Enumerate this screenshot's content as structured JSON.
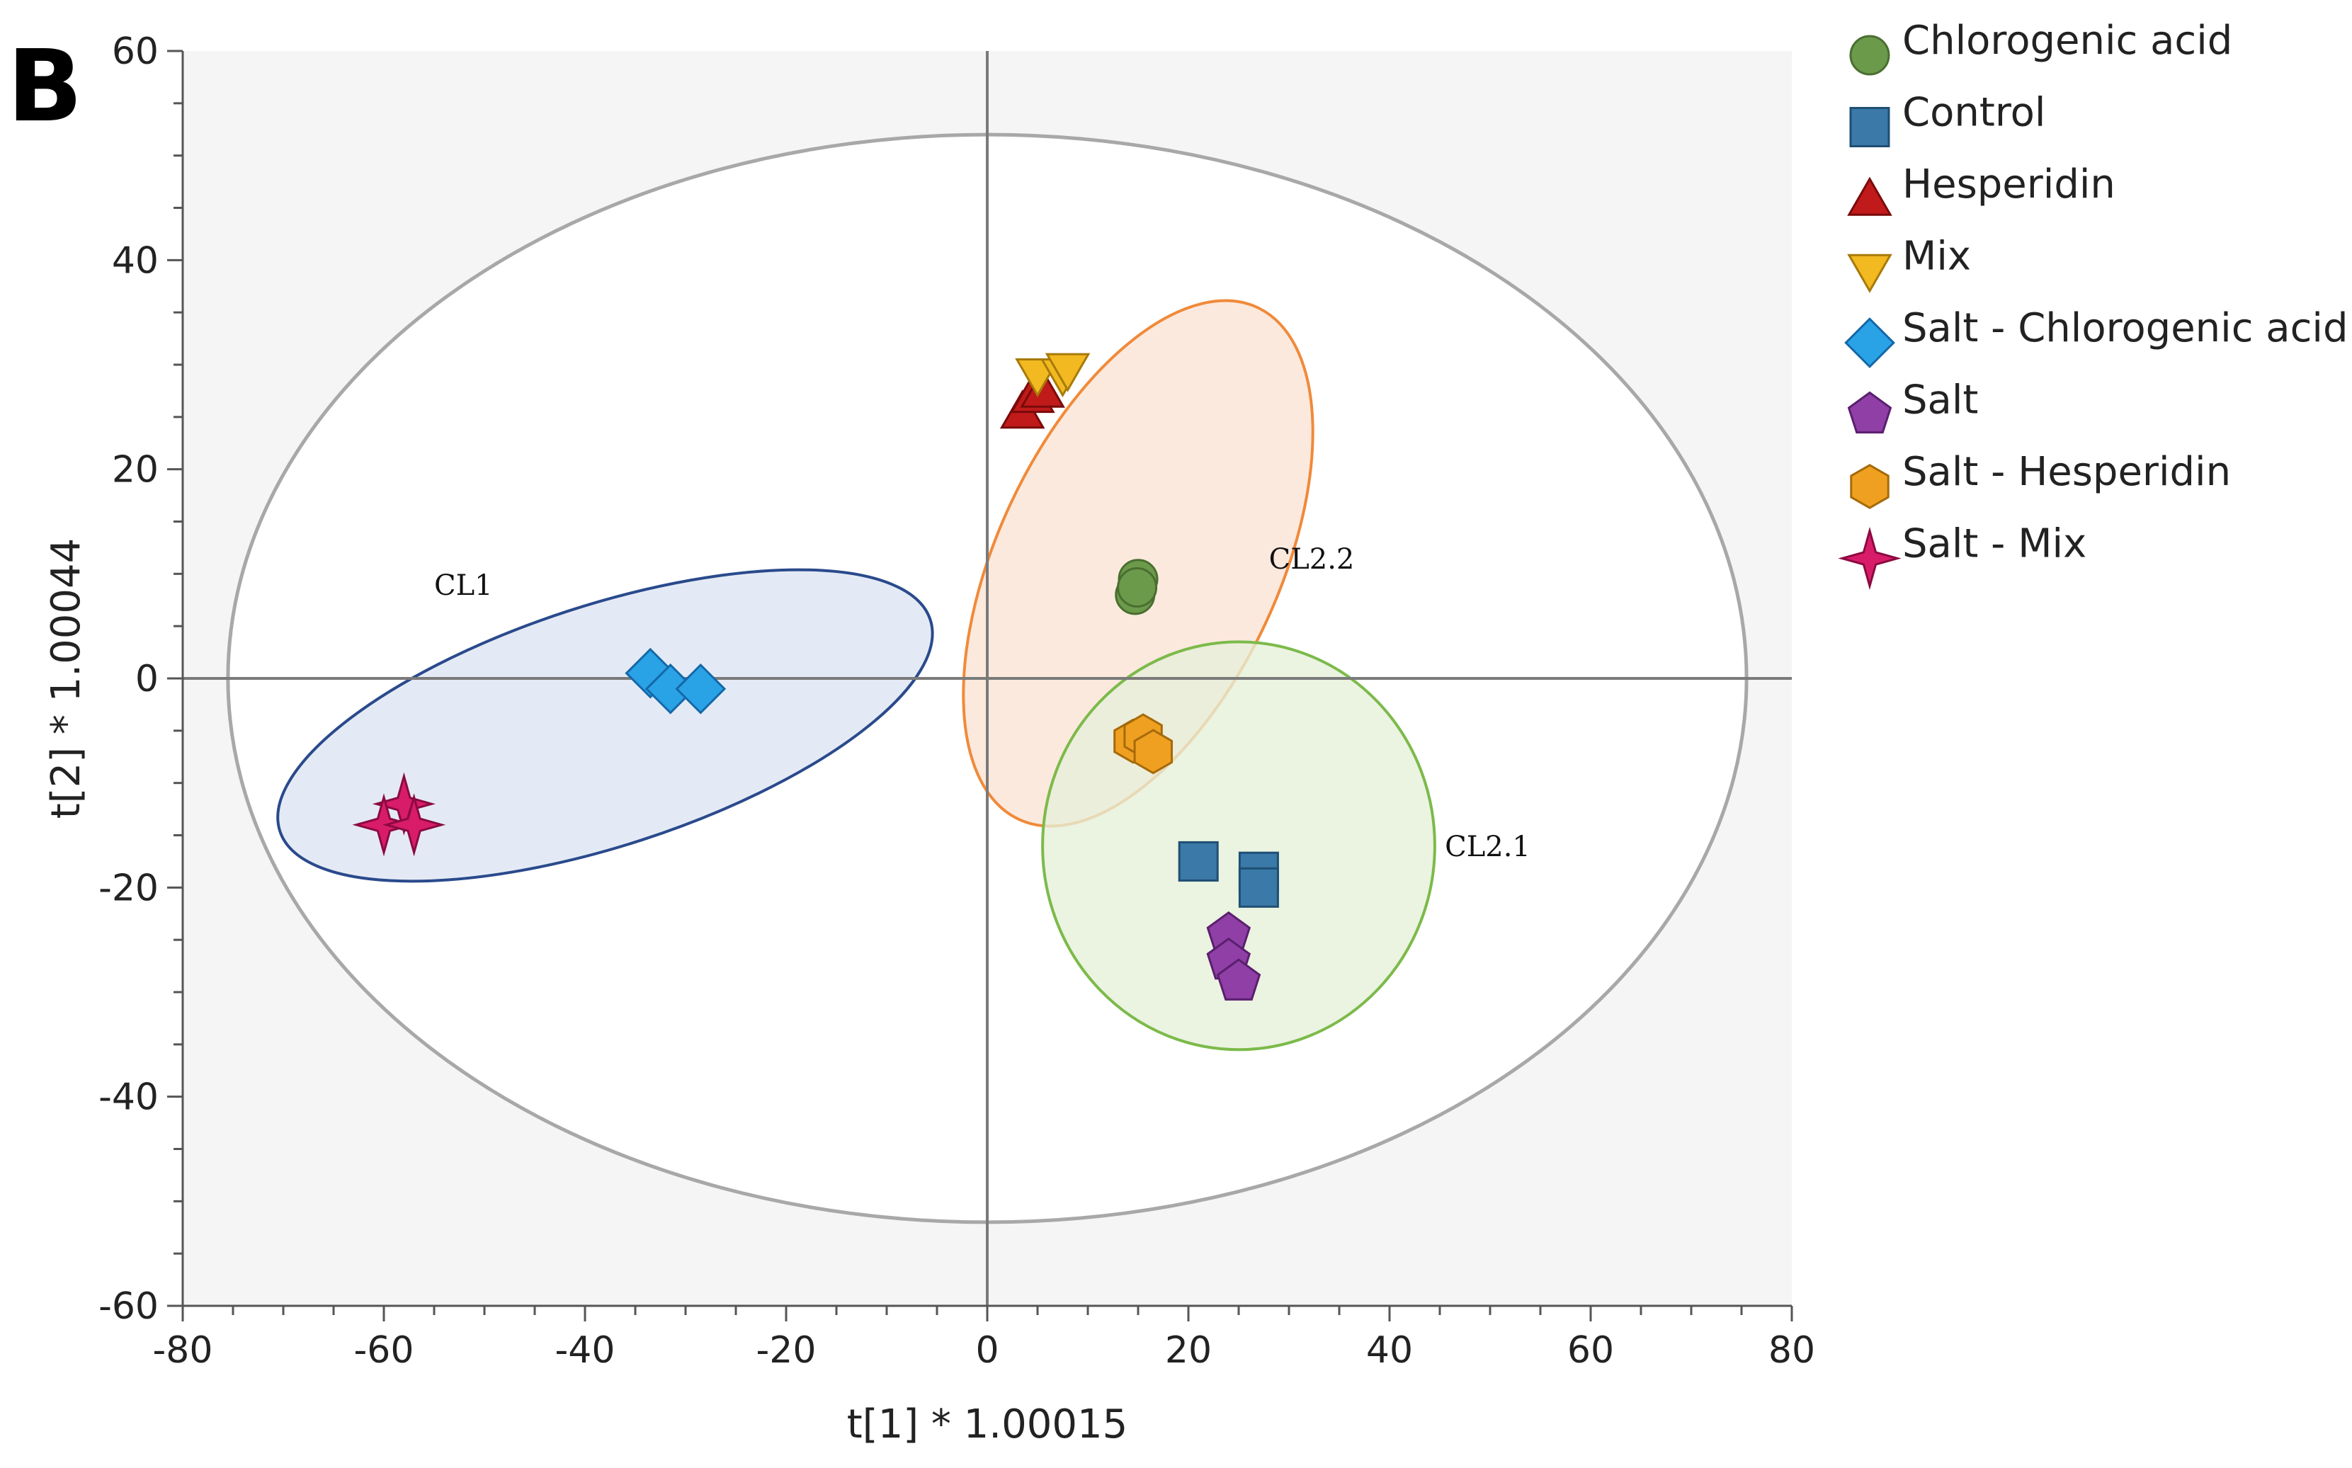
{
  "panel_label": "B",
  "chart_data": {
    "type": "scatter",
    "title": "",
    "xlabel": "t[1] * 1.00015",
    "ylabel": "t[2] * 1.00044",
    "xlim": [
      -80,
      80
    ],
    "ylim": [
      -60,
      60
    ],
    "xticks": [
      "-80",
      "-60",
      "-40",
      "-20",
      "0",
      "20",
      "40",
      "60",
      "80"
    ],
    "yticks": [
      "-60",
      "-40",
      "-20",
      "0",
      "20",
      "40",
      "60"
    ],
    "grid": false,
    "legend_position": "right",
    "hotelling_ellipse": {
      "cx": 0,
      "cy": 0,
      "rx": 75.5,
      "ry": 52
    },
    "clusters": [
      {
        "name": "CL1",
        "cx": -38,
        "cy": -4.5,
        "rx": 34,
        "ry": 11.5,
        "angle_deg": 18,
        "fill": "#dce4f2",
        "stroke": "#2a4a8c",
        "label_x": -55,
        "label_y": 8
      },
      {
        "name": "CL2.2",
        "cx": 15,
        "cy": 11,
        "rx": 14,
        "ry": 27,
        "angle_deg": -25,
        "fill": "#fbe3d3",
        "stroke": "#f08a3a",
        "label_x": 28,
        "label_y": 10.5
      },
      {
        "name": "CL2.1",
        "cx": 25,
        "cy": -16,
        "rx": 19.5,
        "ry": 19.5,
        "angle_deg": 0,
        "fill": "#e6f0d8",
        "stroke": "#7cba4a",
        "label_x": 45.5,
        "label_y": -17
      }
    ],
    "series": [
      {
        "name": "Chlorogenic acid",
        "marker": "circle",
        "color": "#6b9a4a",
        "stroke": "#4a6e30",
        "points": [
          [
            15,
            9.5
          ],
          [
            14.7,
            8
          ],
          [
            14.9,
            8.7
          ]
        ]
      },
      {
        "name": "Control",
        "marker": "square",
        "color": "#3a79a8",
        "stroke": "#1f4f73",
        "points": [
          [
            21,
            -17.5
          ],
          [
            27,
            -18.5
          ],
          [
            27,
            -20
          ]
        ]
      },
      {
        "name": "Hesperidin",
        "marker": "triangle-up",
        "color": "#c01a1a",
        "stroke": "#7a0a0a",
        "points": [
          [
            3.5,
            25.5
          ],
          [
            4.5,
            27
          ],
          [
            5.5,
            27.5
          ]
        ]
      },
      {
        "name": "Mix",
        "marker": "triangle-down",
        "color": "#f2b920",
        "stroke": "#a77a0a",
        "points": [
          [
            5,
            29
          ],
          [
            7.5,
            29
          ],
          [
            8,
            29.5
          ]
        ]
      },
      {
        "name": "Salt - Chlorogenic acid",
        "marker": "diamond",
        "color": "#2aa2e6",
        "stroke": "#1468a8",
        "points": [
          [
            -33.5,
            0.5
          ],
          [
            -31.5,
            -1
          ],
          [
            -28.5,
            -1
          ]
        ]
      },
      {
        "name": "Salt",
        "marker": "pentagon",
        "color": "#8f3fa6",
        "stroke": "#5a1f6e",
        "points": [
          [
            24,
            -24.5
          ],
          [
            24,
            -27
          ],
          [
            25,
            -29
          ]
        ]
      },
      {
        "name": "Salt - Hesperidin",
        "marker": "hexagon",
        "color": "#f0a020",
        "stroke": "#a66a0a",
        "points": [
          [
            14.5,
            -6
          ],
          [
            15.5,
            -5.5
          ],
          [
            16.5,
            -7
          ]
        ]
      },
      {
        "name": "Salt - Mix",
        "marker": "star4",
        "color": "#d81c6a",
        "stroke": "#8c0a40",
        "points": [
          [
            -58,
            -12
          ],
          [
            -60,
            -14
          ],
          [
            -57,
            -14
          ]
        ]
      }
    ]
  }
}
